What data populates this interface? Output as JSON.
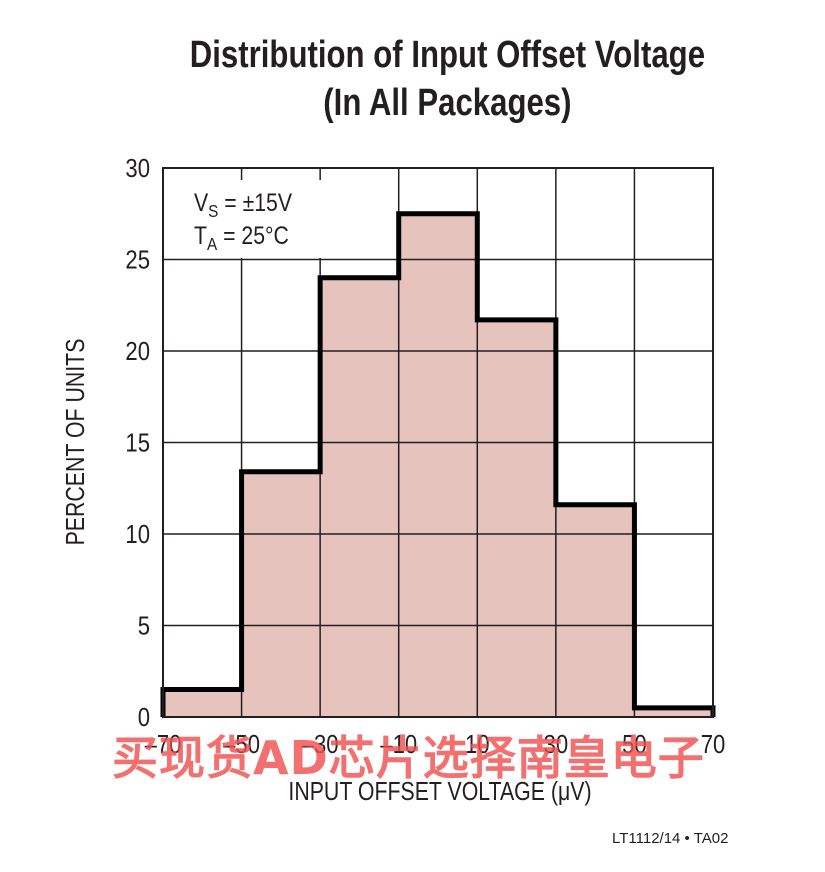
{
  "title_line1": "Distribution of Input Offset Voltage",
  "title_line2": "(In All Packages)",
  "chart_data": {
    "type": "histogram",
    "title": "Distribution of Input Offset Voltage (In All Packages)",
    "xlabel": "INPUT OFFSET VOLTAGE (μV)",
    "ylabel": "PERCENT OF UNITS",
    "xlim": [
      -70,
      70
    ],
    "ylim": [
      0,
      30
    ],
    "xticks": [
      "–70",
      "–50",
      "–30",
      "–10",
      "10",
      "30",
      "50",
      "70"
    ],
    "xtick_values": [
      -70,
      -50,
      -30,
      -10,
      10,
      30,
      50,
      70
    ],
    "yticks": [
      "0",
      "5",
      "10",
      "15",
      "20",
      "25",
      "30"
    ],
    "ytick_values": [
      0,
      5,
      10,
      15,
      20,
      25,
      30
    ],
    "bins": [
      {
        "from": -70,
        "to": -50,
        "value": 1.5
      },
      {
        "from": -50,
        "to": -30,
        "value": 13.4
      },
      {
        "from": -30,
        "to": -10,
        "value": 24.0
      },
      {
        "from": -10,
        "to": 10,
        "value": 27.5
      },
      {
        "from": 10,
        "to": 30,
        "value": 21.7
      },
      {
        "from": 30,
        "to": 50,
        "value": 11.6
      },
      {
        "from": 50,
        "to": 70,
        "value": 0.5
      }
    ],
    "annotation": {
      "vs": "V",
      "vs_sub": "S",
      "vs_val": " = ±15V",
      "ta": "T",
      "ta_sub": "A",
      "ta_val": " = 25°C"
    },
    "grid": true,
    "colors": {
      "fill": "#e6c3bd",
      "outline": "#000000",
      "grid": "#231f20"
    }
  },
  "figure_code": "LT1112/14 • TA02",
  "watermark": "买现货AD芯片选择南皇电子"
}
